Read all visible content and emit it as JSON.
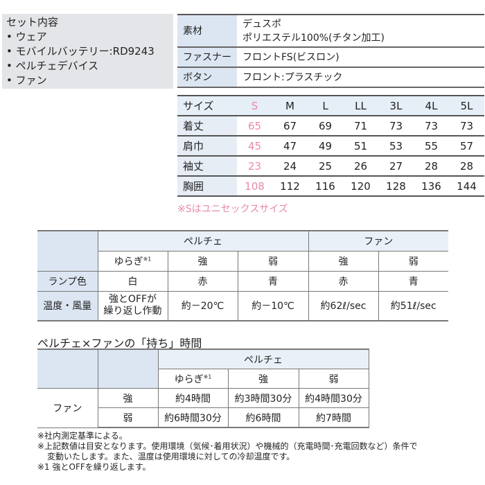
{
  "set_contents": {
    "title": "セット内容",
    "items": [
      "• ウェア",
      "• モバイルバッテリー:RD9243",
      "• ペルチェデバイス",
      "• ファン"
    ]
  },
  "spec": [
    {
      "label": "素材",
      "value_lines": [
        "デュスポ",
        "ポリエステル100%(チタン加工)"
      ]
    },
    {
      "label": "ファスナー",
      "value_lines": [
        "フロントFS(ビスロン)"
      ]
    },
    {
      "label": "ボタン",
      "value_lines": [
        "フロント:プラスチック"
      ]
    }
  ],
  "sizes": {
    "header_label": "サイズ",
    "columns": [
      "S",
      "M",
      "L",
      "LL",
      "3L",
      "4L",
      "5L"
    ],
    "rows": [
      {
        "label": "着丈",
        "values": [
          "65",
          "67",
          "69",
          "71",
          "73",
          "73",
          "73"
        ]
      },
      {
        "label": "肩巾",
        "values": [
          "45",
          "47",
          "49",
          "51",
          "53",
          "55",
          "57"
        ]
      },
      {
        "label": "袖丈",
        "values": [
          "23",
          "24",
          "25",
          "26",
          "27",
          "28",
          "28"
        ]
      },
      {
        "label": "胸囲",
        "values": [
          "108",
          "112",
          "116",
          "120",
          "128",
          "136",
          "144"
        ]
      }
    ],
    "note": "※Sはユニセックスサイズ",
    "highlight_color": "#e88aa8"
  },
  "performance": {
    "group_peltier": "ペルチェ",
    "group_fan": "ファン",
    "modes": [
      "ゆらぎ",
      "強",
      "弱",
      "強",
      "弱"
    ],
    "mode_sup": "※1",
    "lamp_label": "ランプ色",
    "lamp": [
      "白",
      "赤",
      "青",
      "赤",
      "青"
    ],
    "temp_label": "温度・風量",
    "temp_first_lines": [
      "強とOFFが",
      "繰り返し作動"
    ],
    "temp": [
      "約－20℃",
      "約－10℃",
      "約62ℓ/sec",
      "約51ℓ/sec"
    ]
  },
  "duration": {
    "title": "ペルチェ×ファンの「持ち」時間",
    "group_peltier": "ペルチェ",
    "modes": [
      "ゆらぎ",
      "強",
      "弱"
    ],
    "mode_sup": "※1",
    "row_group": "ファン",
    "rows": [
      {
        "label": "強",
        "values": [
          "約4時間",
          "約3時間30分",
          "約4時間30分"
        ]
      },
      {
        "label": "弱",
        "values": [
          "約6時間30分",
          "約6時間",
          "約7時間"
        ]
      }
    ]
  },
  "notes": [
    "※社内測定基準による。",
    "※上記数値は目安となります。使用環境（気候･着用状況）や機械的（充電時間･充電回数など）条件で",
    "変動いたします。また、温度は使用環境に対しての冷却温度です。",
    "※1 強とOFFを繰り返します。"
  ]
}
